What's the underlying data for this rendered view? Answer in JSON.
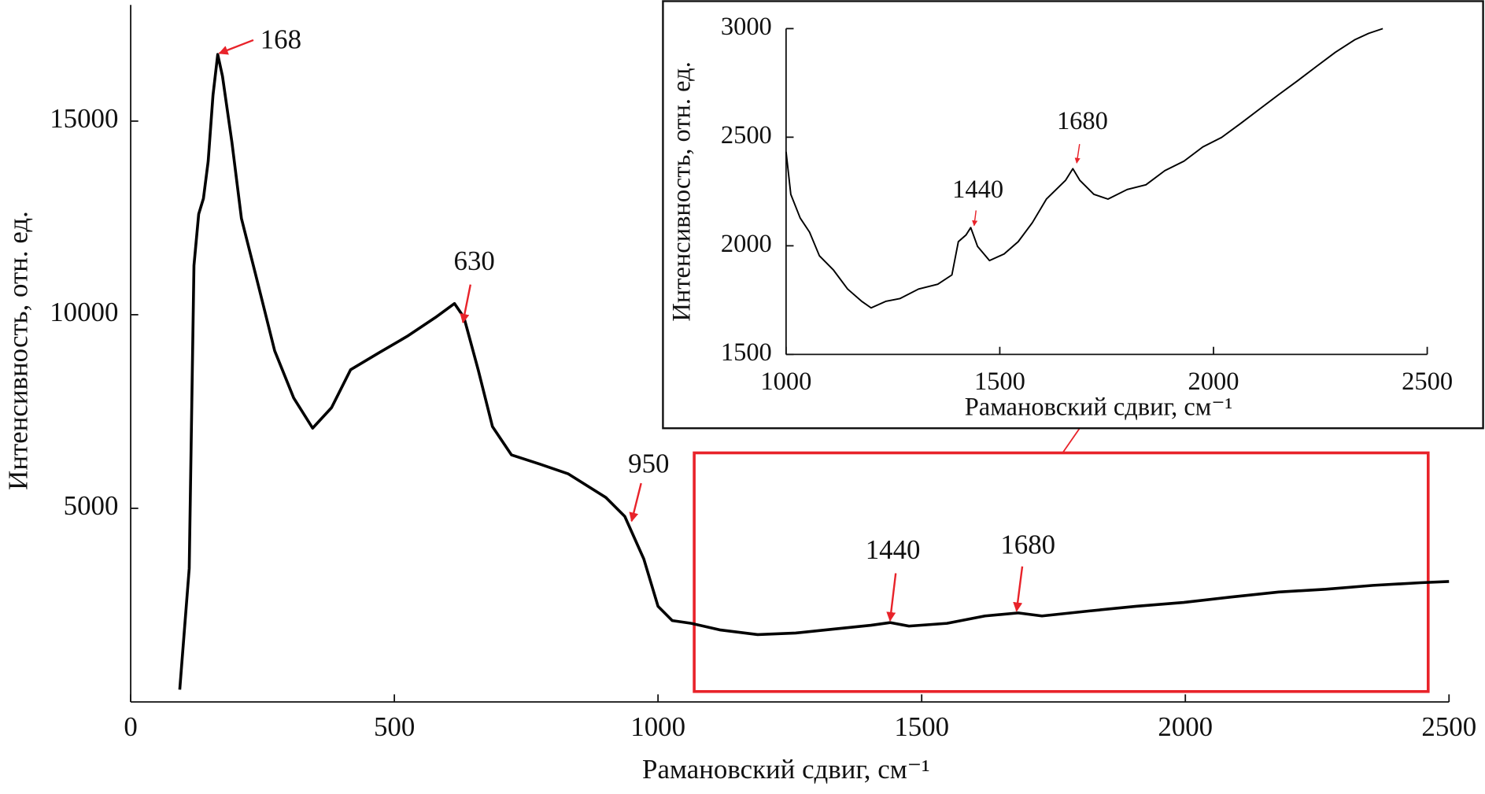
{
  "chart_data": [
    {
      "type": "line",
      "xlabel": "Рамановский сдвиг, см⁻¹",
      "ylabel": "Интенсивность, отн. ед.",
      "xlim": [
        0,
        2500
      ],
      "ylim": [
        0,
        18000
      ],
      "xticks": [
        0,
        500,
        1000,
        1500,
        2000,
        2500
      ],
      "yticks": [
        5000,
        10000,
        15000
      ],
      "color": "#000000",
      "x": [
        93,
        111,
        120,
        129,
        138,
        147,
        156,
        165,
        174,
        192,
        210,
        237,
        273,
        309,
        345,
        381,
        417,
        471,
        524,
        578,
        614,
        632,
        659,
        686,
        722,
        776,
        830,
        901,
        937,
        973,
        1000,
        1027,
        1063,
        1117,
        1189,
        1261,
        1333,
        1404,
        1440,
        1476,
        1548,
        1620,
        1683,
        1728,
        1818,
        1907,
        1997,
        2087,
        2177,
        2266,
        2356,
        2446,
        2500
      ],
      "values": [
        318,
        3450,
        11270,
        12600,
        13000,
        13960,
        15670,
        16720,
        16160,
        14450,
        12490,
        11030,
        9070,
        7850,
        7070,
        7600,
        8580,
        9020,
        9440,
        9930,
        10290,
        9930,
        8580,
        7110,
        6380,
        6140,
        5890,
        5280,
        4790,
        3690,
        2470,
        2100,
        2030,
        1860,
        1740,
        1780,
        1880,
        1980,
        2050,
        1960,
        2030,
        2220,
        2300,
        2220,
        2350,
        2470,
        2570,
        2710,
        2840,
        2910,
        3010,
        3080,
        3110
      ],
      "annotations": [
        {
          "label": "168",
          "x": 168,
          "y": 16750
        },
        {
          "label": "630",
          "x": 630,
          "y": 9800
        },
        {
          "label": "950",
          "x": 950,
          "y": 4670
        },
        {
          "label": "1440",
          "x": 1440,
          "y": 2100
        },
        {
          "label": "1680",
          "x": 1680,
          "y": 2350
        }
      ]
    },
    {
      "type": "line",
      "xlabel": "Рамановский сдвиг, см⁻¹",
      "ylabel": "Интенсивность, отн. ед.",
      "xlim": [
        1000,
        2500
      ],
      "ylim": [
        1500,
        3000
      ],
      "xticks": [
        1000,
        1500,
        2000,
        2500
      ],
      "yticks": [
        1500,
        2000,
        2500,
        3000
      ],
      "color": "#000000",
      "x": [
        1000,
        1011,
        1033,
        1055,
        1078,
        1111,
        1144,
        1177,
        1199,
        1233,
        1266,
        1310,
        1355,
        1388,
        1403,
        1421,
        1432,
        1448,
        1476,
        1510,
        1543,
        1576,
        1609,
        1632,
        1654,
        1671,
        1687,
        1720,
        1753,
        1798,
        1842,
        1886,
        1931,
        1975,
        2019,
        2064,
        2108,
        2152,
        2197,
        2241,
        2285,
        2330,
        2363,
        2396
      ],
      "values": [
        2433,
        2237,
        2128,
        2063,
        1954,
        1888,
        1801,
        1744,
        1714,
        1744,
        1757,
        1801,
        1823,
        1866,
        2019,
        2050,
        2084,
        1997,
        1932,
        1962,
        2019,
        2106,
        2215,
        2259,
        2302,
        2355,
        2302,
        2237,
        2215,
        2259,
        2281,
        2346,
        2390,
        2455,
        2499,
        2564,
        2630,
        2695,
        2760,
        2826,
        2891,
        2948,
        2978,
        3000
      ],
      "annotations": [
        {
          "label": "1440",
          "x": 1440,
          "y": 2093
        },
        {
          "label": "1680",
          "x": 1680,
          "y": 2381
        }
      ]
    }
  ]
}
